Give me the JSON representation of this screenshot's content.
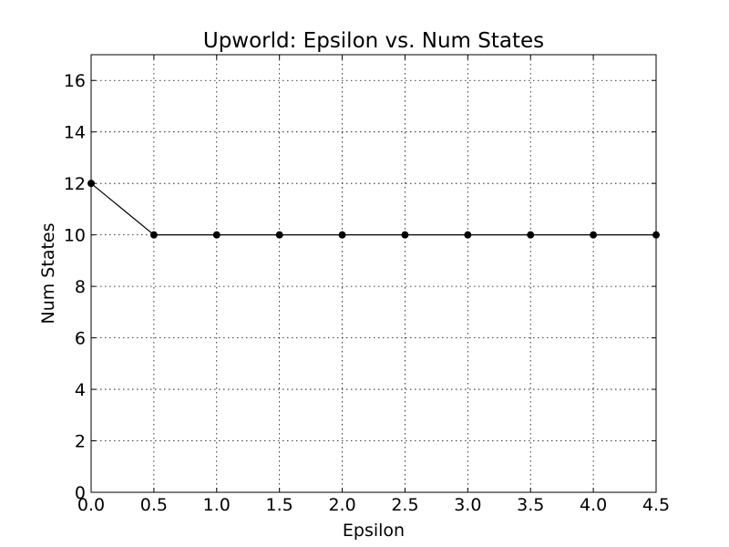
{
  "chart_data": {
    "type": "line",
    "title": "Upworld: Epsilon vs. Num States",
    "xlabel": "Epsilon",
    "ylabel": "Num States",
    "xlim": [
      0.0,
      4.5
    ],
    "ylim": [
      0,
      17
    ],
    "xticks": [
      "0.0",
      "0.5",
      "1.0",
      "1.5",
      "2.0",
      "2.5",
      "3.0",
      "3.5",
      "4.0",
      "4.5"
    ],
    "yticks": [
      "0",
      "2",
      "4",
      "6",
      "8",
      "10",
      "12",
      "14",
      "16"
    ],
    "grid": true,
    "series": [
      {
        "color": "#000000",
        "marker": "circle",
        "x": [
          0.0,
          0.5,
          1.0,
          1.5,
          2.0,
          2.5,
          3.0,
          3.5,
          4.0,
          4.5
        ],
        "y": [
          12,
          10,
          10,
          10,
          10,
          10,
          10,
          10,
          10,
          10
        ]
      }
    ]
  }
}
